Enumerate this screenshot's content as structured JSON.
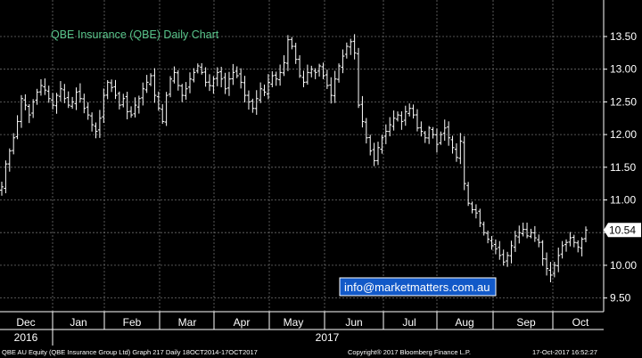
{
  "chart_data": {
    "type": "bar",
    "subtype": "ohlc-daily",
    "title": "QBE Insurance (QBE) Daily Chart",
    "x_months": [
      "Dec",
      "Jan",
      "Feb",
      "Mar",
      "Apr",
      "May",
      "Jun",
      "Jul",
      "Aug",
      "Sep",
      "Oct"
    ],
    "x_years": [
      "2016",
      "2017"
    ],
    "y_ticks": [
      "13.50",
      "13.00",
      "12.50",
      "12.00",
      "11.50",
      "11.00",
      "10.50",
      "10.00",
      "9.50"
    ],
    "ylim": [
      9.3,
      13.9
    ],
    "last_price_label": "10.54",
    "grid": true,
    "close_series": {
      "date_start": "2016-12-01",
      "date_end": "2017-10-17",
      "values": [
        11.2,
        11.55,
        11.75,
        11.95,
        12.2,
        12.55,
        12.45,
        12.3,
        12.5,
        12.65,
        12.75,
        12.68,
        12.55,
        12.45,
        12.6,
        12.7,
        12.55,
        12.45,
        12.5,
        12.65,
        12.55,
        12.4,
        12.3,
        12.15,
        12.05,
        12.25,
        12.6,
        12.8,
        12.72,
        12.6,
        12.45,
        12.55,
        12.35,
        12.3,
        12.45,
        12.55,
        12.7,
        12.8,
        12.9,
        12.6,
        12.4,
        12.2,
        12.6,
        12.85,
        12.95,
        12.75,
        12.6,
        12.7,
        12.85,
        12.95,
        13.05,
        12.95,
        12.8,
        12.75,
        12.85,
        12.95,
        12.85,
        12.7,
        12.85,
        12.95,
        12.9,
        12.8,
        12.6,
        12.5,
        12.4,
        12.55,
        12.7,
        12.65,
        12.8,
        12.9,
        12.85,
        12.95,
        13.1,
        13.45,
        13.35,
        13.15,
        12.9,
        12.8,
        12.95,
        13.0,
        12.95,
        13.05,
        12.9,
        12.75,
        12.6,
        12.85,
        13.05,
        13.2,
        13.35,
        13.42,
        13.25,
        12.45,
        12.2,
        11.95,
        11.75,
        11.6,
        11.8,
        11.95,
        12.05,
        12.15,
        12.25,
        12.3,
        12.2,
        12.35,
        12.4,
        12.3,
        12.1,
        12.05,
        11.95,
        12.1,
        12.0,
        11.85,
        12.0,
        12.1,
        11.95,
        11.8,
        11.65,
        11.9,
        11.25,
        10.95,
        10.85,
        10.8,
        10.65,
        10.5,
        10.4,
        10.3,
        10.25,
        10.15,
        10.05,
        10.15,
        10.3,
        10.45,
        10.5,
        10.55,
        10.45,
        10.5,
        10.42,
        10.35,
        10.1,
        9.95,
        9.85,
        10.0,
        10.15,
        10.3,
        10.35,
        10.42,
        10.35,
        10.28,
        10.4,
        10.54
      ]
    }
  },
  "info_box": "info@marketmatters.com.au",
  "footer": {
    "left": "QBE AU Equity (QBE Insurance Group Ltd) Graph 217  Daily 18OCT2014-17OCT2017",
    "mid": "Copyright® 2017 Bloomberg Finance L.P.",
    "right": "17-Oct-2017 16:52:27"
  },
  "colors": {
    "background": "#000000",
    "grid": "#6e6e6e",
    "bars": "#ffffff",
    "title": "#58c48a",
    "info_box_fill": "#1259c8",
    "info_box_text": "#ffffff",
    "axis_text": "#ffffff"
  }
}
